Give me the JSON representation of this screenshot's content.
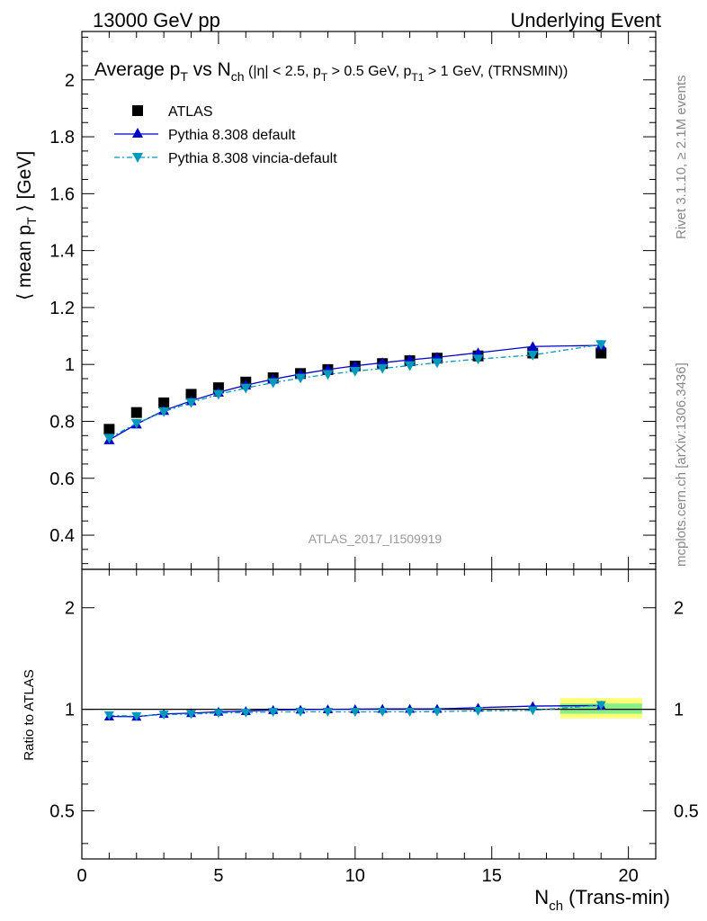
{
  "header": {
    "left": "13000 GeV pp",
    "right": "Underlying Event"
  },
  "side": {
    "rivet": "Rivet 3.1.10, ≥ 2.1M events",
    "mcplots": "mcplots.cern.ch [arXiv:1306.3436]"
  },
  "chart_data": [
    {
      "type": "scatter",
      "title": "Average pT vs Nch (|η| < 2.5, pT > 0.5 GeV, pT1 > 1 GeV, (TRNSMIN))",
      "ylabel": "⟨ mean pT ⟩ [GeV]",
      "xlabel": "",
      "xlim": [
        0,
        21
      ],
      "ylim": [
        0.28,
        2.17
      ],
      "yticks": [
        "0.4",
        "0.6",
        "0.8",
        "1",
        "1.2",
        "1.4",
        "1.6",
        "1.8",
        "2"
      ],
      "watermark": "ATLAS_2017_I1509919",
      "legend_position": "top-left",
      "series": [
        {
          "name": "ATLAS",
          "style": "square-marker",
          "color": "#000000",
          "x": [
            1,
            2,
            3,
            4,
            5,
            6,
            7,
            8,
            9,
            10,
            11,
            12,
            13,
            14.5,
            16.5,
            19
          ],
          "y": [
            0.772,
            0.831,
            0.865,
            0.895,
            0.918,
            0.938,
            0.953,
            0.968,
            0.982,
            0.994,
            1.003,
            1.013,
            1.022,
            1.03,
            1.04,
            1.04
          ]
        },
        {
          "name": "Pythia 8.308 default",
          "style": "line-triangle-up",
          "color": "#0000cc",
          "x": [
            1,
            2,
            3,
            4,
            5,
            6,
            7,
            8,
            9,
            10,
            11,
            12,
            13,
            14.5,
            16.5,
            19
          ],
          "y": [
            0.735,
            0.79,
            0.838,
            0.872,
            0.902,
            0.927,
            0.948,
            0.966,
            0.982,
            0.995,
            1.006,
            1.016,
            1.025,
            1.041,
            1.063,
            1.067
          ]
        },
        {
          "name": "Pythia 8.308 vincia-default",
          "style": "dashdot-triangle-down",
          "color": "#0099bb",
          "x": [
            1,
            2,
            3,
            4,
            5,
            6,
            7,
            8,
            9,
            10,
            11,
            12,
            13,
            14.5,
            16.5,
            19
          ],
          "y": [
            0.741,
            0.793,
            0.834,
            0.866,
            0.895,
            0.917,
            0.936,
            0.952,
            0.965,
            0.976,
            0.986,
            0.996,
            1.006,
            1.019,
            1.033,
            1.07
          ]
        }
      ]
    },
    {
      "type": "scatter",
      "ylabel": "Ratio to ATLAS",
      "xlabel": "Nch (Trans-min)",
      "xlim": [
        0,
        21
      ],
      "ylim": [
        0.36,
        2.6
      ],
      "yscale": "log",
      "yticks": [
        "0.5",
        "1",
        "2"
      ],
      "xticks": [
        "0",
        "5",
        "10",
        "15",
        "20"
      ],
      "uncertainty_band": {
        "x_range": [
          17.5,
          20.5
        ],
        "outer": [
          0.94,
          1.08
        ],
        "inner": [
          0.97,
          1.04
        ],
        "outer_color": "#ffff77",
        "inner_color": "#88ee88"
      },
      "reference_line": 1.0,
      "series": [
        {
          "name": "Pythia 8.308 default",
          "color": "#0000cc",
          "x": [
            1,
            2,
            3,
            4,
            5,
            6,
            7,
            8,
            9,
            10,
            11,
            12,
            13,
            14.5,
            16.5,
            19
          ],
          "y": [
            0.952,
            0.951,
            0.969,
            0.974,
            0.983,
            0.988,
            0.995,
            0.998,
            1.0,
            1.001,
            1.003,
            1.003,
            1.003,
            1.011,
            1.022,
            1.026
          ]
        },
        {
          "name": "Pythia 8.308 vincia-default",
          "color": "#0099bb",
          "x": [
            1,
            2,
            3,
            4,
            5,
            6,
            7,
            8,
            9,
            10,
            11,
            12,
            13,
            14.5,
            16.5,
            19
          ],
          "y": [
            0.96,
            0.954,
            0.964,
            0.968,
            0.975,
            0.978,
            0.982,
            0.983,
            0.983,
            0.982,
            0.983,
            0.983,
            0.984,
            0.989,
            0.993,
            1.029
          ]
        }
      ]
    }
  ]
}
